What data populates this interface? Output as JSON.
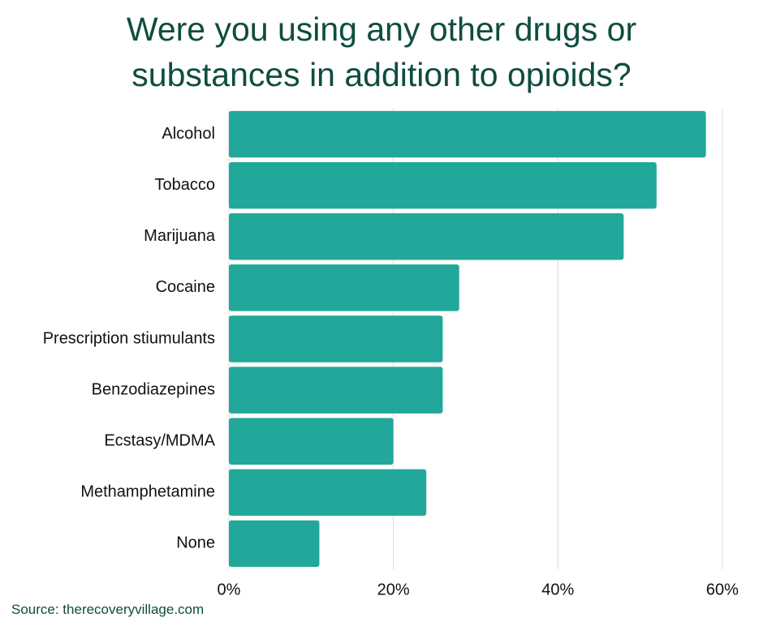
{
  "chart_data": {
    "type": "bar",
    "orientation": "horizontal",
    "title": "Were you using any other drugs or substances in addition to opioids?",
    "categories": [
      "Alcohol",
      "Tobacco",
      "Marijuana",
      "Cocaine",
      "Prescription stiumulants",
      "Benzodiazepines",
      "Ecstasy/MDMA",
      "Methamphetamine",
      "None"
    ],
    "values": [
      58,
      52,
      48,
      28,
      26,
      26,
      20,
      24,
      11
    ],
    "color": "#21a89a",
    "xlim": [
      0,
      60.5
    ],
    "xticks": [
      {
        "value": 0,
        "label": "0%"
      },
      {
        "value": 20,
        "label": "20%"
      },
      {
        "value": 40,
        "label": "40%"
      },
      {
        "value": 60,
        "label": "60%"
      }
    ],
    "grid": true,
    "source": "Source: therecoveryvillage.com"
  }
}
